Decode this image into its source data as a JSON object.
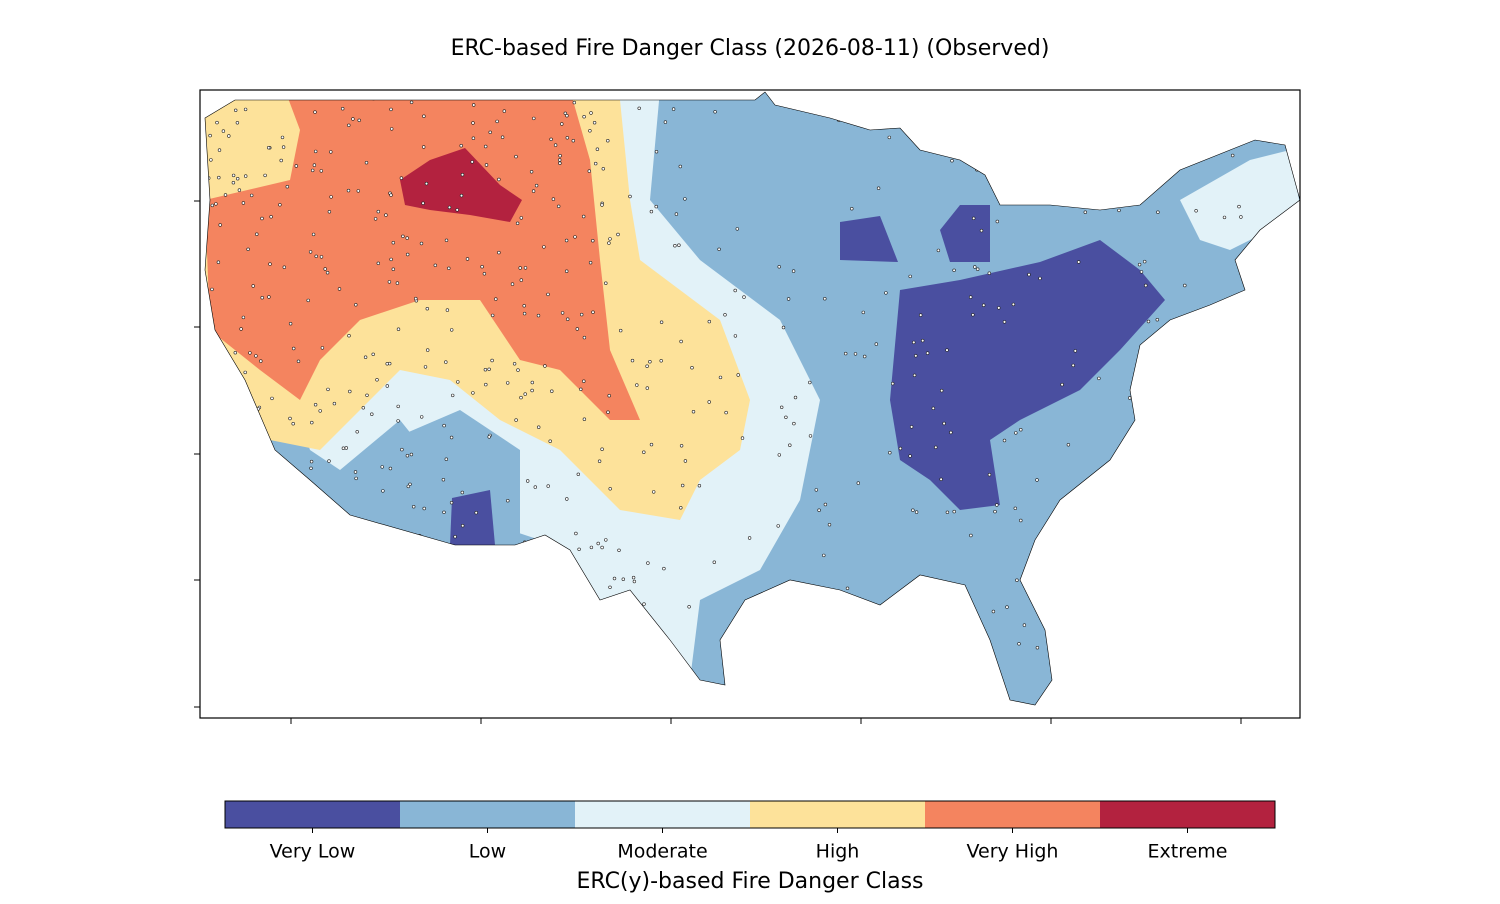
{
  "title": "ERC-based Fire Danger Class (2026-08-11) (Observed)",
  "colorbar": {
    "label": "ERC(y)-based Fire Danger Class",
    "classes": [
      {
        "name": "Very Low",
        "color": "#4a4fa0"
      },
      {
        "name": "Low",
        "color": "#89b6d6"
      },
      {
        "name": "Moderate",
        "color": "#e2f2f8"
      },
      {
        "name": "High",
        "color": "#fde29a"
      },
      {
        "name": "Very High",
        "color": "#f4845f"
      },
      {
        "name": "Extreme",
        "color": "#b3223f"
      }
    ]
  }
}
